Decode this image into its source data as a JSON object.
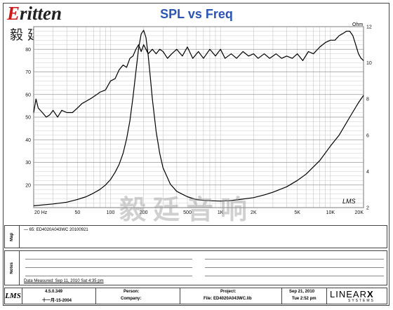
{
  "logo": {
    "brand": "ritten",
    "brand_initial": "E",
    "chinese": "毅廷音响"
  },
  "watermark": "毅廷音响",
  "chart_data": {
    "type": "line",
    "title": "SPL vs Freq",
    "xscale": "log",
    "xlim": [
      20,
      20000
    ],
    "x_ticks": [
      "20 Hz",
      "50",
      "100",
      "200",
      "500",
      "1K",
      "2K",
      "5K",
      "10K",
      "20K"
    ],
    "x_tick_values": [
      20,
      50,
      100,
      200,
      500,
      1000,
      2000,
      5000,
      10000,
      20000
    ],
    "y_left_lim": [
      10,
      90
    ],
    "y_left_ticks": [
      "20",
      "30",
      "40",
      "50",
      "60",
      "70",
      "80"
    ],
    "y_right_label": "Ohm",
    "y_right_lim": [
      2,
      12
    ],
    "y_right_ticks": [
      "12",
      "10",
      "8",
      "6",
      "4",
      "2"
    ],
    "grid": true,
    "series": [
      {
        "name": "SPL",
        "axis": "left",
        "color": "#000000",
        "x": [
          20,
          21,
          22,
          24,
          26,
          28,
          30,
          33,
          36,
          40,
          45,
          50,
          55,
          60,
          65,
          70,
          75,
          80,
          90,
          100,
          110,
          120,
          130,
          140,
          150,
          160,
          170,
          180,
          190,
          200,
          220,
          240,
          260,
          280,
          300,
          330,
          360,
          400,
          450,
          500,
          560,
          630,
          700,
          800,
          900,
          1000,
          1100,
          1250,
          1400,
          1600,
          1800,
          2000,
          2200,
          2500,
          2800,
          3200,
          3600,
          4000,
          4500,
          5000,
          5600,
          6300,
          7000,
          8000,
          9000,
          10000,
          11000,
          12000,
          13000,
          14000,
          15000,
          16000,
          17000,
          18000,
          19000,
          20000
        ],
        "y": [
          52,
          58,
          54,
          52,
          50,
          51,
          53,
          50,
          53,
          52,
          52,
          54,
          56,
          57,
          58,
          59,
          60,
          61,
          62,
          66,
          67,
          71,
          73,
          72,
          76,
          77,
          80,
          82,
          79,
          82,
          78,
          80,
          78,
          80,
          79,
          76,
          78,
          80,
          77,
          81,
          76,
          79,
          76,
          80,
          77,
          80,
          76,
          78,
          76,
          79,
          77,
          78,
          76,
          78,
          76,
          78,
          76,
          77,
          76,
          78,
          75,
          79,
          78,
          81,
          83,
          84,
          84,
          86,
          87,
          88,
          88,
          86,
          82,
          78,
          76,
          75
        ]
      },
      {
        "name": "Impedance",
        "axis": "right",
        "color": "#000000",
        "x": [
          20,
          30,
          40,
          50,
          60,
          70,
          80,
          90,
          100,
          110,
          120,
          130,
          140,
          150,
          160,
          170,
          180,
          190,
          200,
          210,
          220,
          230,
          240,
          260,
          280,
          300,
          350,
          400,
          500,
          600,
          700,
          800,
          1000,
          1200,
          1500,
          2000,
          2500,
          3000,
          4000,
          5000,
          6000,
          8000,
          10000,
          12000,
          15000,
          18000,
          20000
        ],
        "y": [
          2.1,
          2.2,
          2.3,
          2.45,
          2.6,
          2.8,
          3.0,
          3.25,
          3.55,
          3.95,
          4.4,
          5.0,
          5.8,
          6.8,
          8.1,
          9.5,
          10.8,
          11.6,
          11.8,
          11.4,
          10.4,
          9.2,
          8.0,
          6.2,
          5.0,
          4.2,
          3.3,
          2.9,
          2.6,
          2.45,
          2.4,
          2.38,
          2.36,
          2.38,
          2.45,
          2.55,
          2.7,
          2.85,
          3.15,
          3.5,
          3.85,
          4.6,
          5.4,
          6.0,
          7.0,
          7.8,
          8.2
        ]
      }
    ]
  },
  "lms_tag": "LMS",
  "map": {
    "label": "Map",
    "entry": "ED4020A043WC 20100921",
    "entry_prefix": "65:"
  },
  "notes": {
    "label": "Notes"
  },
  "measured": "Data Measured: Sep 11, 2010  Sat  4:35 pm",
  "footer": {
    "lms": "LMS",
    "version": "4.5.0.349",
    "version_date": "十一月-15-2004",
    "person_label": "Person:",
    "company_label": "Company:",
    "project_label": "Project:",
    "file_label": "File: ED4020A043WC.lib",
    "date": "Sep 21, 2010",
    "time": "Tue  2:52 pm",
    "brand": "LINEAR",
    "brand_x": "X",
    "brand_sub": "SYSTEMS"
  }
}
